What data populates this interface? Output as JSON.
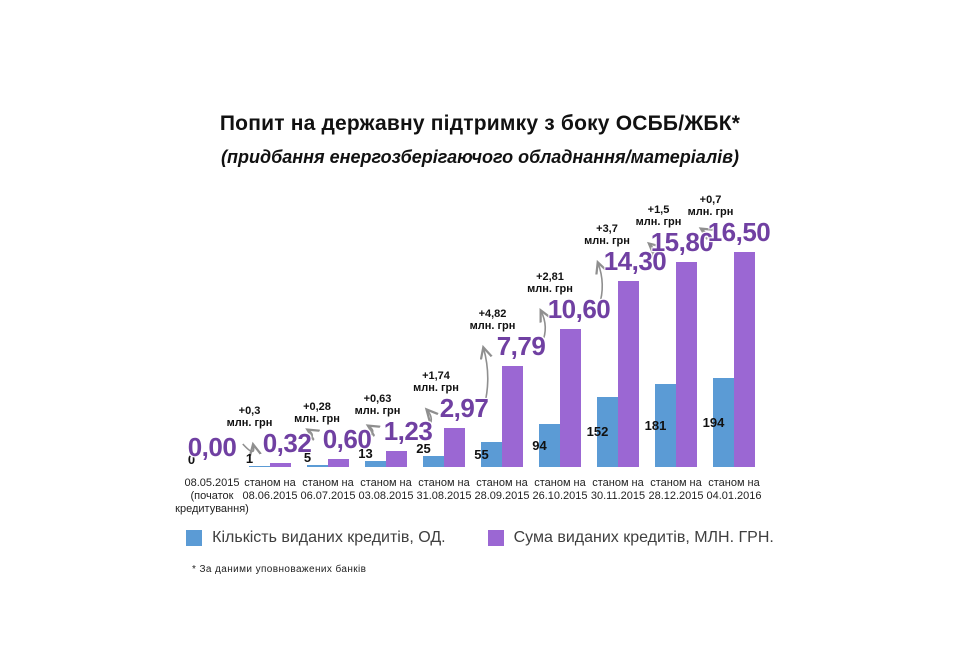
{
  "title": "Попит на державну підтримку з боку ОСББ/ЖБК*",
  "subtitle": "(придбання енергозберігаючого обладнання/матеріалів)",
  "footnote": "* За даними уповноважених банків",
  "legend": {
    "items": [
      {
        "label": "Кількість виданих кредитів, ОД.",
        "color": "#5B9BD5"
      },
      {
        "label": "Сума виданих кредитів, МЛН. ГРН.",
        "color": "#9B67D3"
      }
    ],
    "position": "bottom"
  },
  "colors": {
    "bar_blue": "#5B9BD5",
    "bar_purple": "#9B67D3",
    "value_label_purple": "#7040A2",
    "arrow": "#8F8F8F"
  },
  "chart_data": {
    "type": "bar",
    "title": "Попит на державну підтримку з боку ОСББ/ЖБК*",
    "subtitle": "(придбання енергозберігаючого обладнання/матеріалів)",
    "grid": false,
    "axes_visible": false,
    "legend_position": "bottom",
    "categories": [
      [
        "08.05.2015",
        "(початок",
        "кредитування)"
      ],
      [
        "станом на",
        "08.06.2015"
      ],
      [
        "станом на",
        "06.07.2015"
      ],
      [
        "станом на",
        "03.08.2015"
      ],
      [
        "станом на",
        "31.08.2015"
      ],
      [
        "станом на",
        "28.09.2015"
      ],
      [
        "станом на",
        "26.10.2015"
      ],
      [
        "станом на",
        "30.11.2015"
      ],
      [
        "станом на",
        "28.12.2015"
      ],
      [
        "станом на",
        "04.01.2016"
      ]
    ],
    "series": [
      {
        "name": "Кількість виданих кредитів, ОД.",
        "color": "#5B9BD5",
        "values": [
          0,
          1,
          5,
          13,
          25,
          55,
          94,
          152,
          181,
          194
        ],
        "value_labels": [
          "0",
          "1",
          "5",
          "13",
          "25",
          "55",
          "94",
          "152",
          "181",
          "194"
        ]
      },
      {
        "name": "Сума виданих кредитів, МЛН. ГРН.",
        "color": "#9B67D3",
        "values": [
          0.0,
          0.32,
          0.6,
          1.23,
          2.97,
          7.79,
          10.6,
          14.3,
          15.8,
          16.5
        ],
        "value_labels": [
          "0,00",
          "0,32",
          "0,60",
          "1,23",
          "2,97",
          "7,79",
          "10,60",
          "14,30",
          "15,80",
          "16,50"
        ]
      }
    ],
    "deltas": [
      "+0,3",
      "+0,28",
      "+0,63",
      "+1,74",
      "+4,82",
      "+2,81",
      "+3,7",
      "+1,5",
      "+0,7"
    ],
    "delta_unit": "млн. грн",
    "ylim_count": [
      0,
      194
    ],
    "ylim_sum_mln": [
      0,
      16.5
    ]
  }
}
